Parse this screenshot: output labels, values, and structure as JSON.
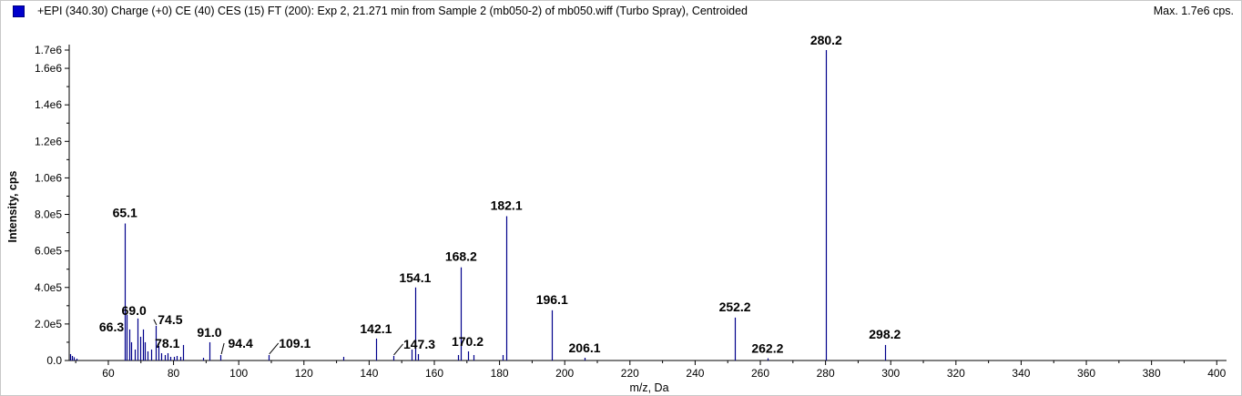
{
  "header": {
    "title": "+EPI (340.30) Charge (+0) CE (40) CES (15) FT (200): Exp 2, 21.271 min from Sample 2 (mb050-2) of mb050.wiff (Turbo Spray), Centroided",
    "max_label": "Max. 1.7e6 cps."
  },
  "colors": {
    "bar": "#00008b",
    "axis": "#000000",
    "legend": "#0000cc"
  },
  "chart_data": {
    "type": "bar",
    "xlabel": "m/z, Da",
    "ylabel": "Intensity, cps",
    "xlim": [
      48,
      403
    ],
    "ylim": [
      0,
      1700000
    ],
    "x_ticks": [
      60,
      80,
      100,
      120,
      140,
      160,
      180,
      200,
      220,
      240,
      260,
      280,
      300,
      320,
      340,
      360,
      380,
      400
    ],
    "y_ticks": [
      {
        "value": 0,
        "label": "0.0"
      },
      {
        "value": 200000,
        "label": "2.0e5"
      },
      {
        "value": 400000,
        "label": "4.0e5"
      },
      {
        "value": 600000,
        "label": "6.0e5"
      },
      {
        "value": 800000,
        "label": "8.0e5"
      },
      {
        "value": 1000000,
        "label": "1.0e6"
      },
      {
        "value": 1200000,
        "label": "1.2e6"
      },
      {
        "value": 1400000,
        "label": "1.4e6"
      },
      {
        "value": 1600000,
        "label": "1.6e6"
      },
      {
        "value": 1700000,
        "label": "1.7e6"
      }
    ],
    "peaks": [
      {
        "mz": 48.3,
        "intensity": 35000
      },
      {
        "mz": 48.8,
        "intensity": 25000
      },
      {
        "mz": 49.4,
        "intensity": 18000
      },
      {
        "mz": 50.1,
        "intensity": 10000
      },
      {
        "mz": 65.1,
        "intensity": 750000
      },
      {
        "mz": 65.6,
        "intensity": 250000
      },
      {
        "mz": 66.3,
        "intensity": 170000
      },
      {
        "mz": 67.0,
        "intensity": 100000
      },
      {
        "mz": 68.2,
        "intensity": 60000
      },
      {
        "mz": 69.0,
        "intensity": 230000
      },
      {
        "mz": 69.8,
        "intensity": 130000
      },
      {
        "mz": 70.5,
        "intensity": 170000
      },
      {
        "mz": 71.2,
        "intensity": 100000
      },
      {
        "mz": 72.1,
        "intensity": 50000
      },
      {
        "mz": 73.0,
        "intensity": 60000
      },
      {
        "mz": 74.5,
        "intensity": 190000
      },
      {
        "mz": 75.3,
        "intensity": 80000
      },
      {
        "mz": 76.3,
        "intensity": 40000
      },
      {
        "mz": 77.2,
        "intensity": 30000
      },
      {
        "mz": 78.1,
        "intensity": 40000
      },
      {
        "mz": 79.0,
        "intensity": 20000
      },
      {
        "mz": 80.0,
        "intensity": 20000
      },
      {
        "mz": 81.0,
        "intensity": 25000
      },
      {
        "mz": 82.0,
        "intensity": 20000
      },
      {
        "mz": 83.0,
        "intensity": 85000
      },
      {
        "mz": 89.0,
        "intensity": 15000
      },
      {
        "mz": 91.0,
        "intensity": 100000
      },
      {
        "mz": 94.4,
        "intensity": 30000
      },
      {
        "mz": 109.1,
        "intensity": 30000
      },
      {
        "mz": 132.0,
        "intensity": 20000
      },
      {
        "mz": 142.1,
        "intensity": 120000
      },
      {
        "mz": 147.3,
        "intensity": 25000
      },
      {
        "mz": 153.0,
        "intensity": 60000
      },
      {
        "mz": 154.1,
        "intensity": 400000
      },
      {
        "mz": 155.0,
        "intensity": 35000
      },
      {
        "mz": 167.2,
        "intensity": 30000
      },
      {
        "mz": 168.2,
        "intensity": 510000
      },
      {
        "mz": 170.2,
        "intensity": 50000
      },
      {
        "mz": 172.0,
        "intensity": 30000
      },
      {
        "mz": 181.0,
        "intensity": 30000
      },
      {
        "mz": 182.1,
        "intensity": 790000
      },
      {
        "mz": 196.1,
        "intensity": 275000
      },
      {
        "mz": 206.1,
        "intensity": 15000
      },
      {
        "mz": 252.2,
        "intensity": 235000
      },
      {
        "mz": 262.2,
        "intensity": 12000
      },
      {
        "mz": 280.2,
        "intensity": 1700000
      },
      {
        "mz": 298.2,
        "intensity": 85000
      }
    ],
    "annotations": [
      {
        "label": "65.1",
        "mz": 65.1,
        "intensity": 750000,
        "dx": 0,
        "dy": -7
      },
      {
        "label": "66.3",
        "mz": 66.3,
        "intensity": 170000,
        "dx": -19,
        "dy": 2
      },
      {
        "label": "69.0",
        "mz": 69.0,
        "intensity": 230000,
        "dx": -4,
        "dy": -4
      },
      {
        "label": "74.5",
        "mz": 74.5,
        "intensity": 190000,
        "dx": 16,
        "dy": -2
      },
      {
        "label": "78.1",
        "mz": 78.1,
        "intensity": 40000,
        "dx": 0,
        "dy": -6
      },
      {
        "label": "91.0",
        "mz": 91.0,
        "intensity": 100000,
        "dx": 0,
        "dy": -6
      },
      {
        "label": "94.4",
        "mz": 94.4,
        "intensity": 30000,
        "dx": 22,
        "dy": -8
      },
      {
        "label": "109.1",
        "mz": 109.1,
        "intensity": 30000,
        "dx": 29,
        "dy": -8
      },
      {
        "label": "142.1",
        "mz": 142.1,
        "intensity": 120000,
        "dx": 0,
        "dy": -6
      },
      {
        "label": "147.3",
        "mz": 147.3,
        "intensity": 25000,
        "dx": 29,
        "dy": -8
      },
      {
        "label": "154.1",
        "mz": 154.1,
        "intensity": 400000,
        "dx": 0,
        "dy": -6
      },
      {
        "label": "168.2",
        "mz": 168.2,
        "intensity": 510000,
        "dx": 0,
        "dy": -7
      },
      {
        "label": "170.2",
        "mz": 170.2,
        "intensity": 50000,
        "dx": 0,
        "dy": -6
      },
      {
        "label": "182.1",
        "mz": 182.1,
        "intensity": 790000,
        "dx": 0,
        "dy": -7
      },
      {
        "label": "196.1",
        "mz": 196.1,
        "intensity": 275000,
        "dx": 0,
        "dy": -7
      },
      {
        "label": "206.1",
        "mz": 206.1,
        "intensity": 15000,
        "dx": 0,
        "dy": -6
      },
      {
        "label": "252.2",
        "mz": 252.2,
        "intensity": 235000,
        "dx": 0,
        "dy": -7
      },
      {
        "label": "262.2",
        "mz": 262.2,
        "intensity": 12000,
        "dx": 0,
        "dy": -6
      },
      {
        "label": "280.2",
        "mz": 280.2,
        "intensity": 1700000,
        "dx": 0,
        "dy": -6
      },
      {
        "label": "298.2",
        "mz": 298.2,
        "intensity": 85000,
        "dx": 0,
        "dy": -7
      }
    ],
    "leader_lines": [
      "74.5",
      "94.4",
      "109.1",
      "147.3"
    ],
    "grid": false,
    "legend": "top-left"
  }
}
